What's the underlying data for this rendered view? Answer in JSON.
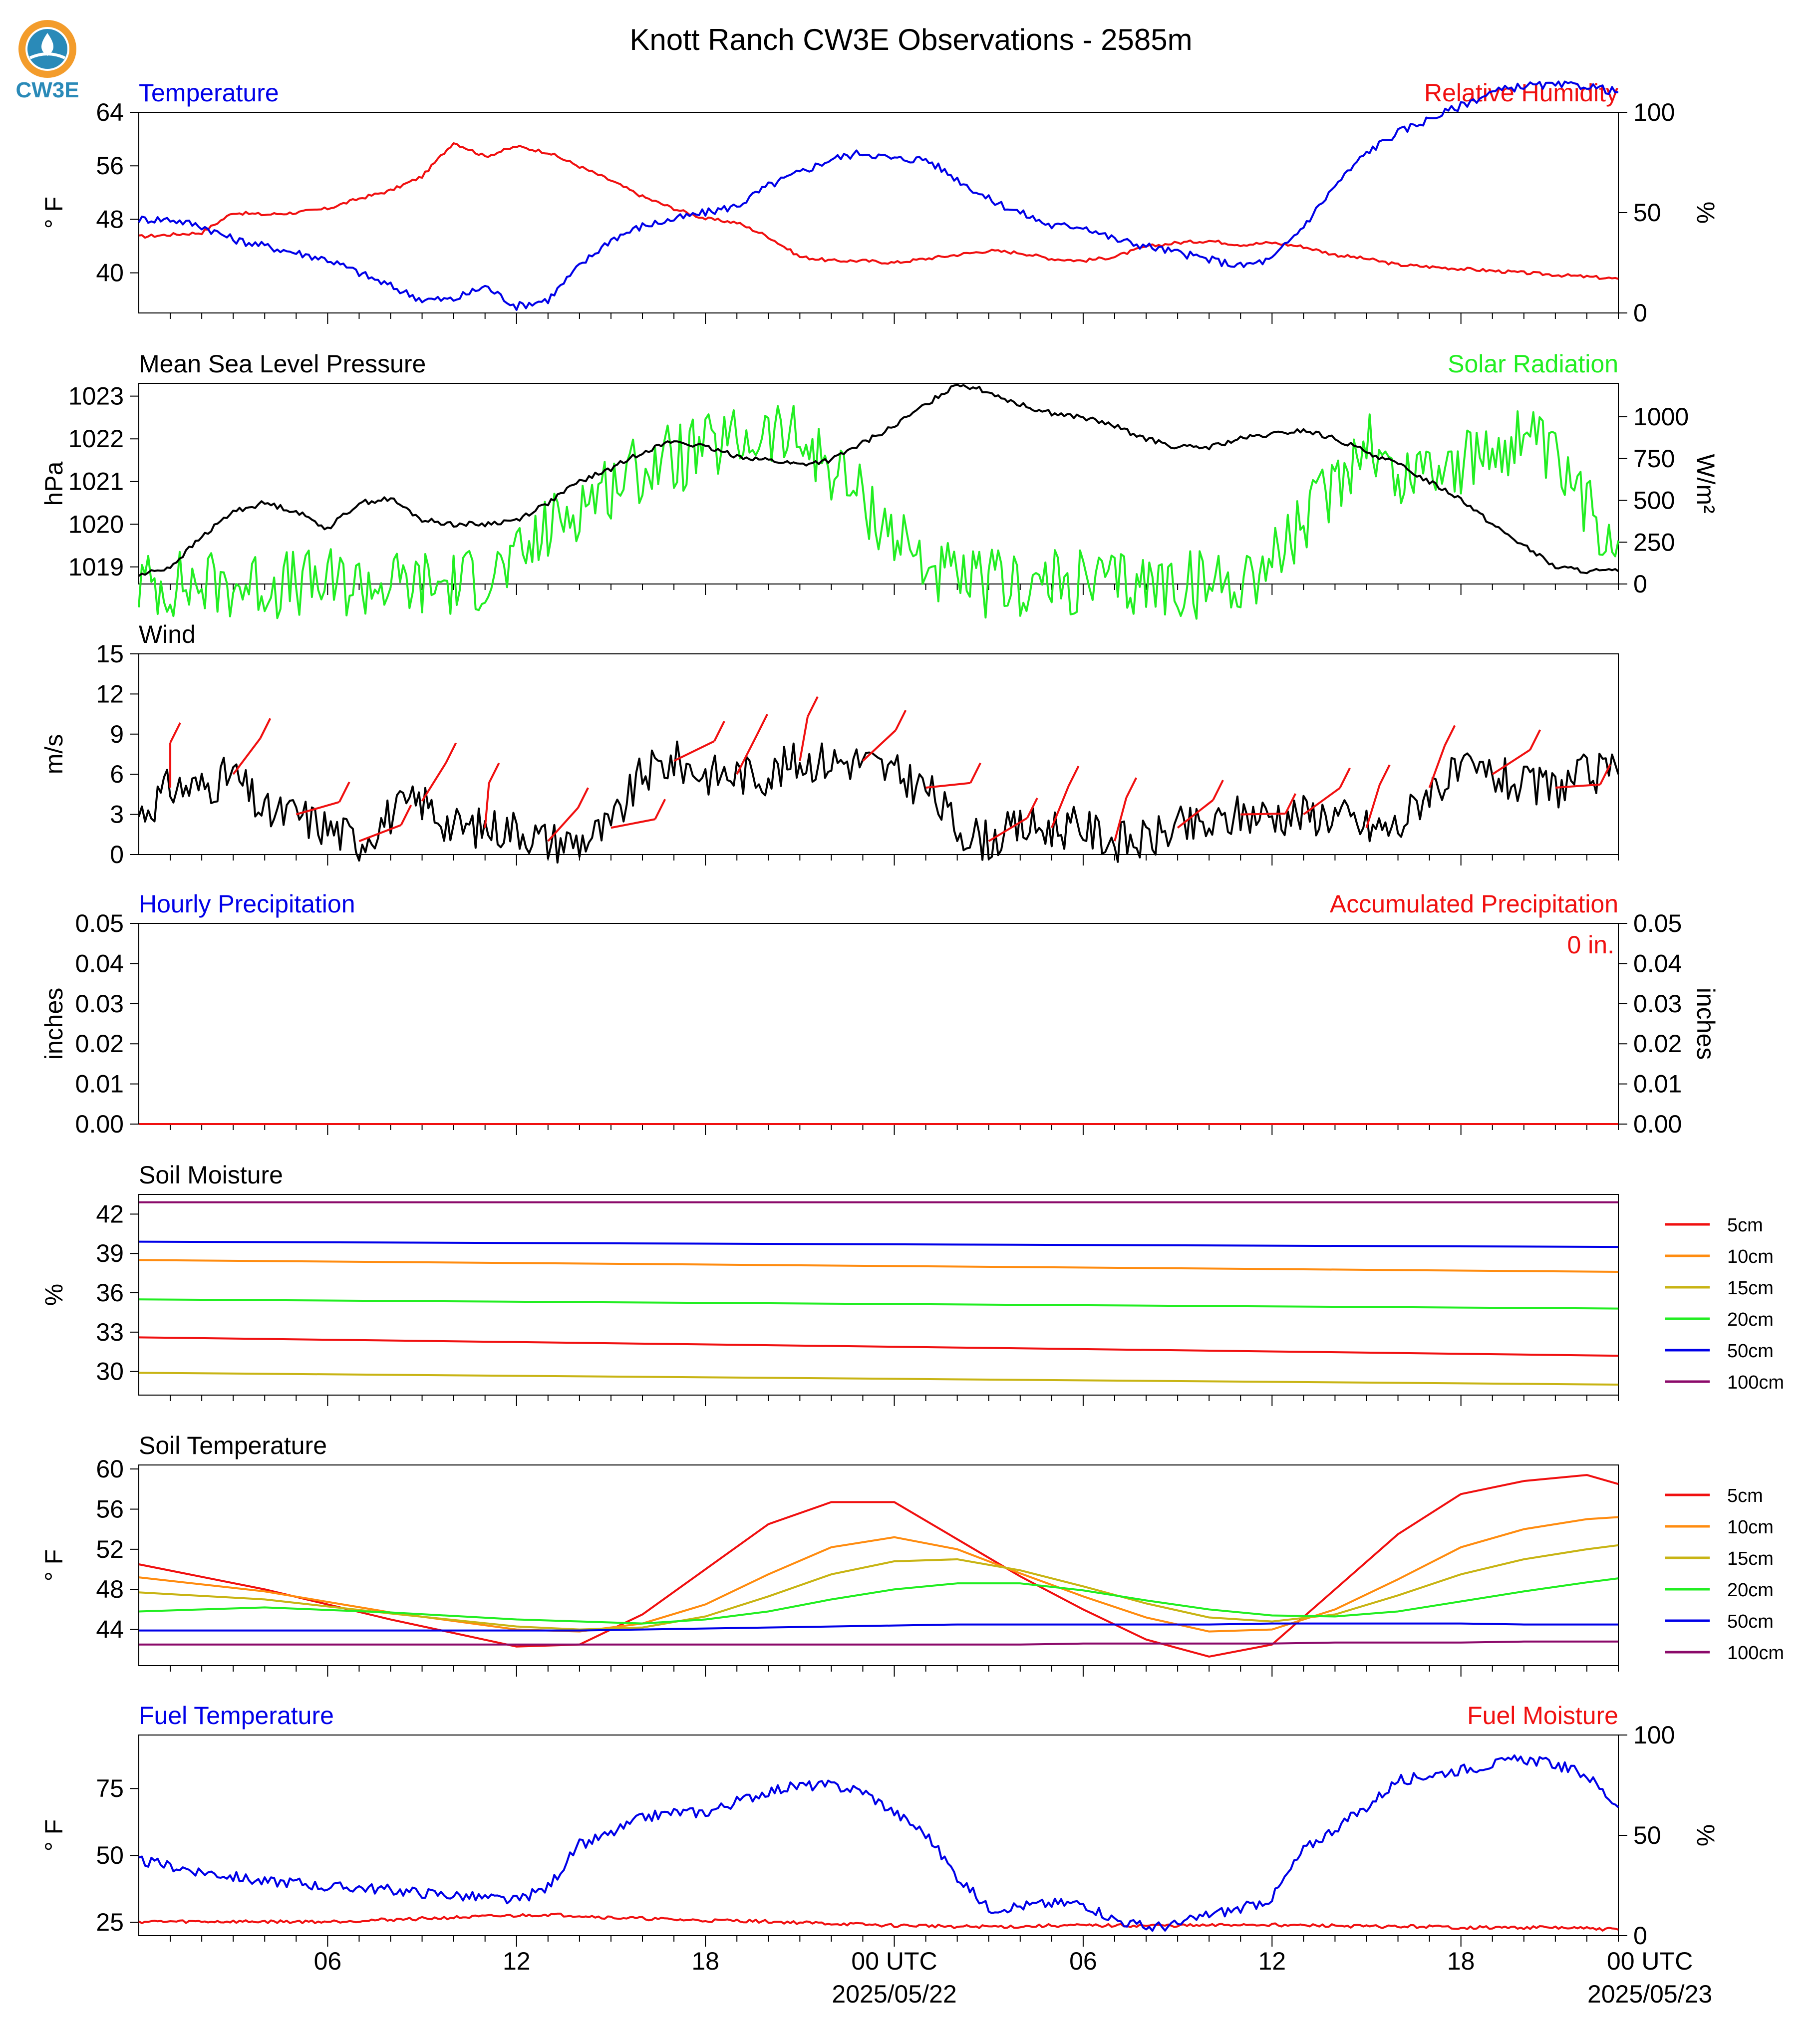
{
  "title": "Knott Ranch CW3E Observations - 2585m",
  "logo": {
    "text": "CW3E",
    "color": "#2a8ab8",
    "ring": "#f39c2b"
  },
  "x_axis": {
    "ticks": [
      "06",
      "12",
      "18",
      "00 UTC",
      "06",
      "12",
      "18",
      "00 UTC"
    ],
    "dates": [
      "2025/05/22",
      "2025/05/23"
    ]
  },
  "colors": {
    "blue": "#0000e8",
    "red": "#f01010",
    "green": "#22ee22",
    "black": "#000000",
    "orange": "#ff8c10",
    "olive": "#c8b414",
    "purple": "#8b0a6a"
  },
  "chart_data": [
    {
      "type": "line",
      "title_left": "Temperature",
      "title_right": "Relative Humidity",
      "ylabel": "° F",
      "ylabel_right": "%",
      "ylim": [
        34,
        64
      ],
      "ylim_right": [
        0,
        100
      ],
      "yticks": [
        40,
        48,
        56,
        64
      ],
      "yticks_right": [
        0,
        50,
        100
      ],
      "x": [
        0,
        1,
        2,
        3,
        4,
        5,
        6,
        7,
        8,
        9,
        10,
        11,
        12,
        13,
        14,
        15,
        16,
        17,
        18,
        19,
        20,
        21,
        22,
        23,
        24,
        25,
        26,
        27,
        28,
        29,
        30,
        31,
        32,
        33,
        34,
        35,
        36,
        37,
        38,
        39,
        40,
        41,
        42,
        43,
        44,
        45,
        46,
        47
      ],
      "series": [
        {
          "name": "Relative Humidity",
          "axis": "right",
          "color": "red",
          "values": [
            38,
            39,
            40,
            50,
            49,
            50,
            52,
            57,
            61,
            68,
            85,
            78,
            83,
            80,
            73,
            66,
            58,
            52,
            47,
            45,
            38,
            28,
            26,
            26,
            25,
            27,
            29,
            31,
            30,
            27,
            26,
            28,
            33,
            35,
            36,
            34,
            35,
            33,
            29,
            27,
            24,
            23,
            22,
            21,
            20,
            19,
            18,
            17
          ]
        },
        {
          "name": "Temperature",
          "axis": "left",
          "color": "blue",
          "values": [
            48,
            48,
            47,
            45,
            44,
            43,
            42,
            40,
            38,
            36,
            36,
            38,
            35,
            36,
            41,
            45,
            47,
            48,
            49,
            50,
            53,
            55,
            57,
            58,
            57,
            57,
            54,
            51,
            49,
            47,
            47,
            45,
            44,
            43,
            42,
            41,
            42,
            47,
            53,
            58,
            61,
            63,
            65,
            67,
            68,
            68,
            68,
            67
          ]
        }
      ]
    },
    {
      "type": "line",
      "title_left": "Mean Sea Level Pressure",
      "title_right": "Solar Radiation",
      "ylabel": "hPa",
      "ylabel_right": "W/m²",
      "ylim": [
        1018.6,
        1023.3
      ],
      "ylim_right": [
        0,
        1200
      ],
      "yticks": [
        1019,
        1020,
        1021,
        1022,
        1023
      ],
      "yticks_right": [
        0,
        250,
        500,
        750,
        1000
      ],
      "x": [
        0,
        1,
        2,
        3,
        4,
        5,
        6,
        7,
        8,
        9,
        10,
        11,
        12,
        13,
        14,
        15,
        16,
        17,
        18,
        19,
        20,
        21,
        22,
        23,
        24,
        25,
        26,
        27,
        28,
        29,
        30,
        31,
        32,
        33,
        34,
        35,
        36,
        37,
        38,
        39,
        40,
        41,
        42,
        43,
        44,
        45,
        46,
        47
      ],
      "series": [
        {
          "name": "Solar Radiation",
          "axis": "right",
          "color": "green",
          "values": [
            0,
            0,
            0,
            0,
            0,
            0,
            0,
            0,
            0,
            0,
            0,
            50,
            120,
            330,
            480,
            600,
            700,
            750,
            800,
            850,
            900,
            850,
            700,
            500,
            300,
            120,
            0,
            0,
            0,
            0,
            0,
            0,
            0,
            0,
            0,
            30,
            150,
            350,
            600,
            900,
            600,
            750,
            700,
            800,
            900,
            700,
            450,
            260
          ]
        },
        {
          "name": "Mean Sea Level Pressure",
          "axis": "left",
          "color": "black",
          "values": [
            1018.8,
            1019.0,
            1019.7,
            1020.3,
            1020.5,
            1020.3,
            1019.9,
            1020.5,
            1020.6,
            1020.1,
            1020.0,
            1020.0,
            1020.1,
            1020.5,
            1021.0,
            1021.3,
            1021.7,
            1021.95,
            1021.8,
            1021.6,
            1021.5,
            1021.4,
            1021.5,
            1021.9,
            1022.3,
            1022.8,
            1023.3,
            1023.1,
            1022.8,
            1022.6,
            1022.5,
            1022.3,
            1022.0,
            1021.8,
            1021.8,
            1022.0,
            1022.1,
            1022.2,
            1022.0,
            1021.7,
            1021.4,
            1021.0,
            1020.6,
            1020.0,
            1019.5,
            1019.0,
            1018.9,
            1018.9
          ]
        }
      ]
    },
    {
      "type": "line",
      "title_left": "Wind",
      "ylabel": "m/s",
      "ylim": [
        0,
        15
      ],
      "yticks": [
        0,
        3,
        6,
        9,
        12,
        15
      ],
      "x": [
        0,
        1,
        2,
        3,
        4,
        5,
        6,
        7,
        8,
        9,
        10,
        11,
        12,
        13,
        14,
        15,
        16,
        17,
        18,
        19,
        20,
        21,
        22,
        23,
        24,
        25,
        26,
        27,
        28,
        29,
        30,
        31,
        32,
        33,
        34,
        35,
        36,
        37,
        38,
        39,
        40,
        41,
        42,
        43,
        44,
        45,
        46,
        47
      ],
      "series": [
        {
          "name": "Wind Speed",
          "axis": "left",
          "color": "black",
          "values": [
            3,
            5,
            5,
            6,
            3,
            3,
            2,
            1,
            3,
            4,
            2,
            2,
            2,
            1,
            1,
            2,
            6,
            7,
            6,
            6,
            6,
            7,
            7,
            7,
            6,
            5,
            2,
            1,
            2,
            2,
            2,
            1,
            1,
            2,
            2,
            3,
            3,
            3,
            3,
            2,
            2,
            5,
            6,
            6,
            5,
            5,
            6,
            6
          ]
        }
      ],
      "barbs": {
        "color": "red",
        "note": "wind barbs"
      }
    },
    {
      "type": "line",
      "title_left": "Hourly Precipitation",
      "title_right": "Accumulated Precipitation",
      "ylabel": "inches",
      "ylabel_right": "inches",
      "ylim": [
        0,
        0.05
      ],
      "ylim_right": [
        0,
        0.05
      ],
      "yticks": [
        "0.00",
        "0.01",
        "0.02",
        "0.03",
        "0.04",
        "0.05"
      ],
      "yticks_right": [
        "0.00",
        "0.01",
        "0.02",
        "0.03",
        "0.04",
        "0.05"
      ],
      "annotation": "0 in.",
      "x": [
        0,
        47
      ],
      "series": [
        {
          "name": "Hourly Precipitation",
          "axis": "left",
          "color": "blue",
          "values": [
            0,
            0
          ]
        },
        {
          "name": "Accumulated Precipitation",
          "axis": "right",
          "color": "red",
          "values": [
            0,
            0
          ]
        }
      ]
    },
    {
      "type": "line",
      "title_left": "Soil Moisture",
      "ylabel": "%",
      "ylim": [
        28.2,
        43.5
      ],
      "yticks": [
        30,
        33,
        36,
        39,
        42
      ],
      "x": [
        0,
        47
      ],
      "series": [
        {
          "name": "5cm",
          "color": "red",
          "values": [
            32.6,
            31.2
          ]
        },
        {
          "name": "10cm",
          "color": "orange",
          "values": [
            38.5,
            37.6
          ]
        },
        {
          "name": "15cm",
          "color": "olive",
          "values": [
            29.9,
            29.0
          ]
        },
        {
          "name": "20cm",
          "color": "green",
          "values": [
            35.5,
            34.8
          ]
        },
        {
          "name": "50cm",
          "color": "blue",
          "values": [
            39.9,
            39.5
          ]
        },
        {
          "name": "100cm",
          "color": "purple",
          "values": [
            42.9,
            42.9
          ]
        }
      ]
    },
    {
      "type": "line",
      "title_left": "Soil Temperature",
      "ylabel": "° F",
      "ylim": [
        40.4,
        60.4
      ],
      "yticks": [
        44,
        48,
        52,
        56,
        60
      ],
      "x": [
        0,
        4,
        8,
        12,
        14,
        16,
        18,
        20,
        22,
        24,
        26,
        28,
        30,
        32,
        34,
        36,
        38,
        40,
        42,
        44,
        46,
        47
      ],
      "series": [
        {
          "name": "5cm",
          "color": "red",
          "values": [
            50.5,
            48.0,
            45.0,
            42.3,
            42.5,
            45.5,
            50.0,
            54.5,
            56.7,
            56.7,
            53.0,
            49.3,
            46.0,
            43.0,
            41.3,
            42.5,
            48.0,
            53.5,
            57.5,
            58.8,
            59.4,
            58.5
          ]
        },
        {
          "name": "10cm",
          "color": "orange",
          "values": [
            49.2,
            47.8,
            45.7,
            44.0,
            43.8,
            44.6,
            46.5,
            49.5,
            52.2,
            53.2,
            52.0,
            49.6,
            47.3,
            45.2,
            43.8,
            44.0,
            46.0,
            49.0,
            52.2,
            54.0,
            55.0,
            55.2
          ]
        },
        {
          "name": "15cm",
          "color": "olive",
          "values": [
            47.7,
            47.0,
            45.6,
            44.3,
            44.0,
            44.2,
            45.3,
            47.3,
            49.5,
            50.8,
            51.0,
            49.9,
            48.3,
            46.6,
            45.2,
            44.8,
            45.5,
            47.4,
            49.5,
            51.0,
            52.0,
            52.4
          ]
        },
        {
          "name": "20cm",
          "color": "green",
          "values": [
            45.8,
            46.2,
            45.7,
            45.0,
            44.8,
            44.6,
            45.0,
            45.8,
            47.0,
            48.0,
            48.6,
            48.6,
            47.9,
            46.9,
            46.0,
            45.4,
            45.3,
            45.8,
            46.8,
            47.8,
            48.7,
            49.1
          ]
        },
        {
          "name": "50cm",
          "color": "blue",
          "values": [
            43.9,
            43.9,
            43.9,
            43.9,
            43.9,
            44.0,
            44.1,
            44.2,
            44.3,
            44.4,
            44.5,
            44.5,
            44.5,
            44.5,
            44.5,
            44.6,
            44.6,
            44.6,
            44.6,
            44.5,
            44.5,
            44.5
          ]
        },
        {
          "name": "100cm",
          "color": "purple",
          "values": [
            42.5,
            42.5,
            42.5,
            42.5,
            42.5,
            42.5,
            42.5,
            42.5,
            42.5,
            42.5,
            42.5,
            42.5,
            42.6,
            42.6,
            42.6,
            42.6,
            42.7,
            42.7,
            42.7,
            42.8,
            42.8,
            42.8
          ]
        }
      ]
    },
    {
      "type": "line",
      "title_left": "Fuel Temperature",
      "title_right": "Fuel Moisture",
      "ylabel": "° F",
      "ylabel_right": "%",
      "ylim": [
        20,
        95
      ],
      "ylim_right": [
        0,
        100
      ],
      "yticks": [
        25,
        50,
        75
      ],
      "yticks_right": [
        0,
        50,
        100
      ],
      "x": [
        0,
        1,
        2,
        3,
        4,
        5,
        6,
        7,
        8,
        9,
        10,
        11,
        12,
        13,
        14,
        15,
        16,
        17,
        18,
        19,
        20,
        21,
        22,
        23,
        24,
        25,
        26,
        27,
        28,
        29,
        30,
        31,
        32,
        33,
        34,
        35,
        36,
        37,
        38,
        39,
        40,
        41,
        42,
        43,
        44,
        45,
        46,
        47
      ],
      "series": [
        {
          "name": "Fuel Moisture",
          "axis": "right",
          "color": "red",
          "values": [
            7,
            7,
            7,
            7,
            7,
            7,
            7,
            7.5,
            8,
            8.5,
            9,
            9.5,
            10,
            10.5,
            10,
            9,
            8.5,
            8,
            7.5,
            7.5,
            7,
            6.5,
            6,
            5.5,
            5,
            5,
            4.5,
            4.5,
            4.5,
            5,
            5,
            5,
            5,
            5,
            5,
            5.5,
            5.5,
            5,
            5,
            4.5,
            4.5,
            4.5,
            4,
            4,
            4,
            4,
            3.5,
            3
          ]
        },
        {
          "name": "Fuel Temperature",
          "axis": "left",
          "color": "blue",
          "values": [
            48,
            46,
            44,
            42,
            40,
            40,
            38,
            38,
            37,
            36,
            35,
            34,
            33,
            38,
            54,
            58,
            64,
            66,
            66,
            70,
            74,
            76,
            76,
            74,
            66,
            58,
            42,
            30,
            31,
            32,
            32,
            26,
            23,
            24,
            28,
            30,
            34,
            52,
            60,
            68,
            78,
            80,
            82,
            84,
            86,
            84,
            80,
            68
          ]
        }
      ]
    }
  ]
}
